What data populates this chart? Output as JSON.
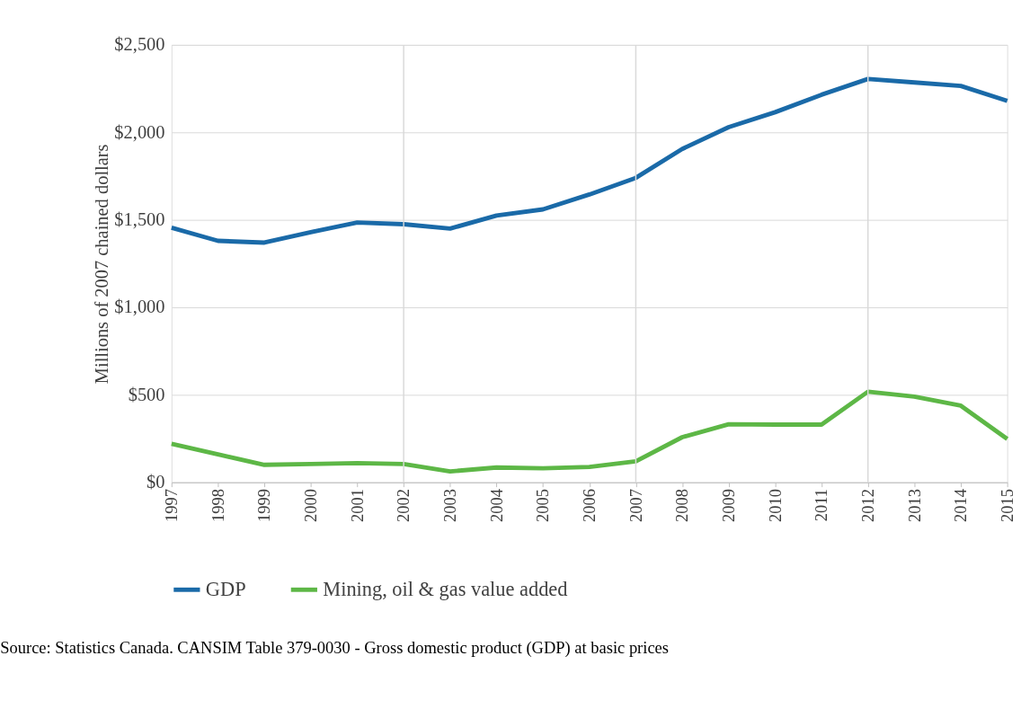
{
  "chart_data": {
    "type": "line",
    "ylabel": "Millions of 2007 chained dollars",
    "categories": [
      "1997",
      "1998",
      "1999",
      "2000",
      "2001",
      "2002",
      "2003",
      "2004",
      "2005",
      "2006",
      "2007",
      "2008",
      "2009",
      "2010",
      "2011",
      "2012",
      "2013",
      "2014",
      "2015"
    ],
    "series": [
      {
        "name": "GDP",
        "color": "#1a6aa8",
        "values": [
          1455,
          1380,
          1370,
          1430,
          1485,
          1475,
          1450,
          1525,
          1560,
          1645,
          1740,
          1905,
          2030,
          2115,
          2215,
          2305,
          2285,
          2265,
          2180
        ]
      },
      {
        "name": "Mining, oil & gas value added",
        "color": "#5db746",
        "values": [
          220,
          160,
          100,
          105,
          110,
          105,
          62,
          85,
          80,
          88,
          120,
          258,
          332,
          330,
          330,
          518,
          490,
          438,
          248
        ]
      }
    ],
    "ylim": [
      0,
      2500
    ],
    "yticks": [
      {
        "value": 0,
        "label": "$0"
      },
      {
        "value": 500,
        "label": "$500"
      },
      {
        "value": 1000,
        "label": "$1,000"
      },
      {
        "value": 1500,
        "label": "$1,500"
      },
      {
        "value": 2000,
        "label": "$2,000"
      },
      {
        "value": 2500,
        "label": "$2,500"
      }
    ],
    "ref_lines": [
      {
        "axis": "x",
        "value": "2002",
        "color": "#d9d9d9"
      },
      {
        "axis": "x",
        "value": "2007",
        "color": "#d9d9d9"
      },
      {
        "axis": "x",
        "value": "2012",
        "color": "#d9d9d9"
      }
    ],
    "grid": "y",
    "legend": "bottom",
    "marker": "none",
    "line_style": "solid",
    "annotations": [
      "Source: Statistics Canada. CANSIM Table 379-0030 - Gross domestic product (GDP) at basic prices"
    ]
  }
}
